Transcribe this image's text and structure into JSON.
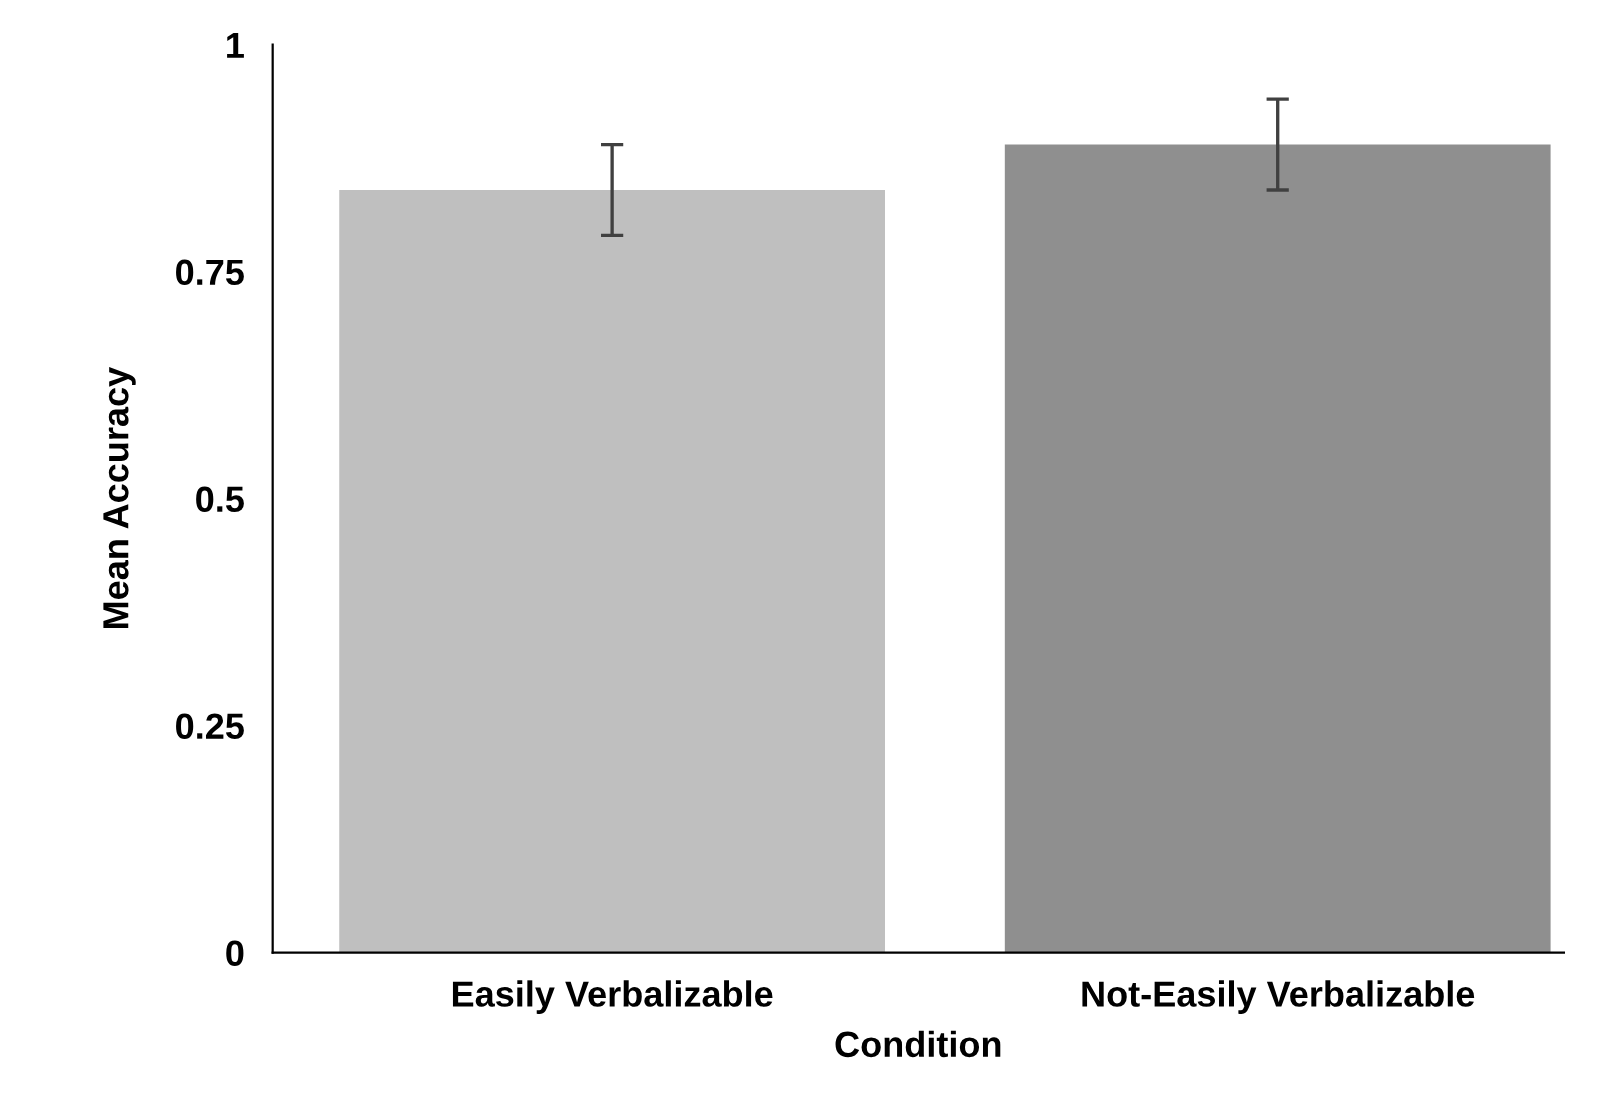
{
  "chart_data": {
    "type": "bar",
    "xlabel": "Condition",
    "ylabel": "Mean Accuracy",
    "categories": [
      "Easily Verbalizable",
      "Not-Easily Verbalizable"
    ],
    "values": [
      0.84,
      0.89
    ],
    "colors": [
      "#bfbfbf",
      "#8f8f8f"
    ],
    "errors": [
      0.05,
      0.05
    ],
    "ylim": [
      0,
      1
    ],
    "yticks": [
      0,
      0.25,
      0.5,
      0.75,
      1
    ],
    "grid": false,
    "legend": false
  }
}
